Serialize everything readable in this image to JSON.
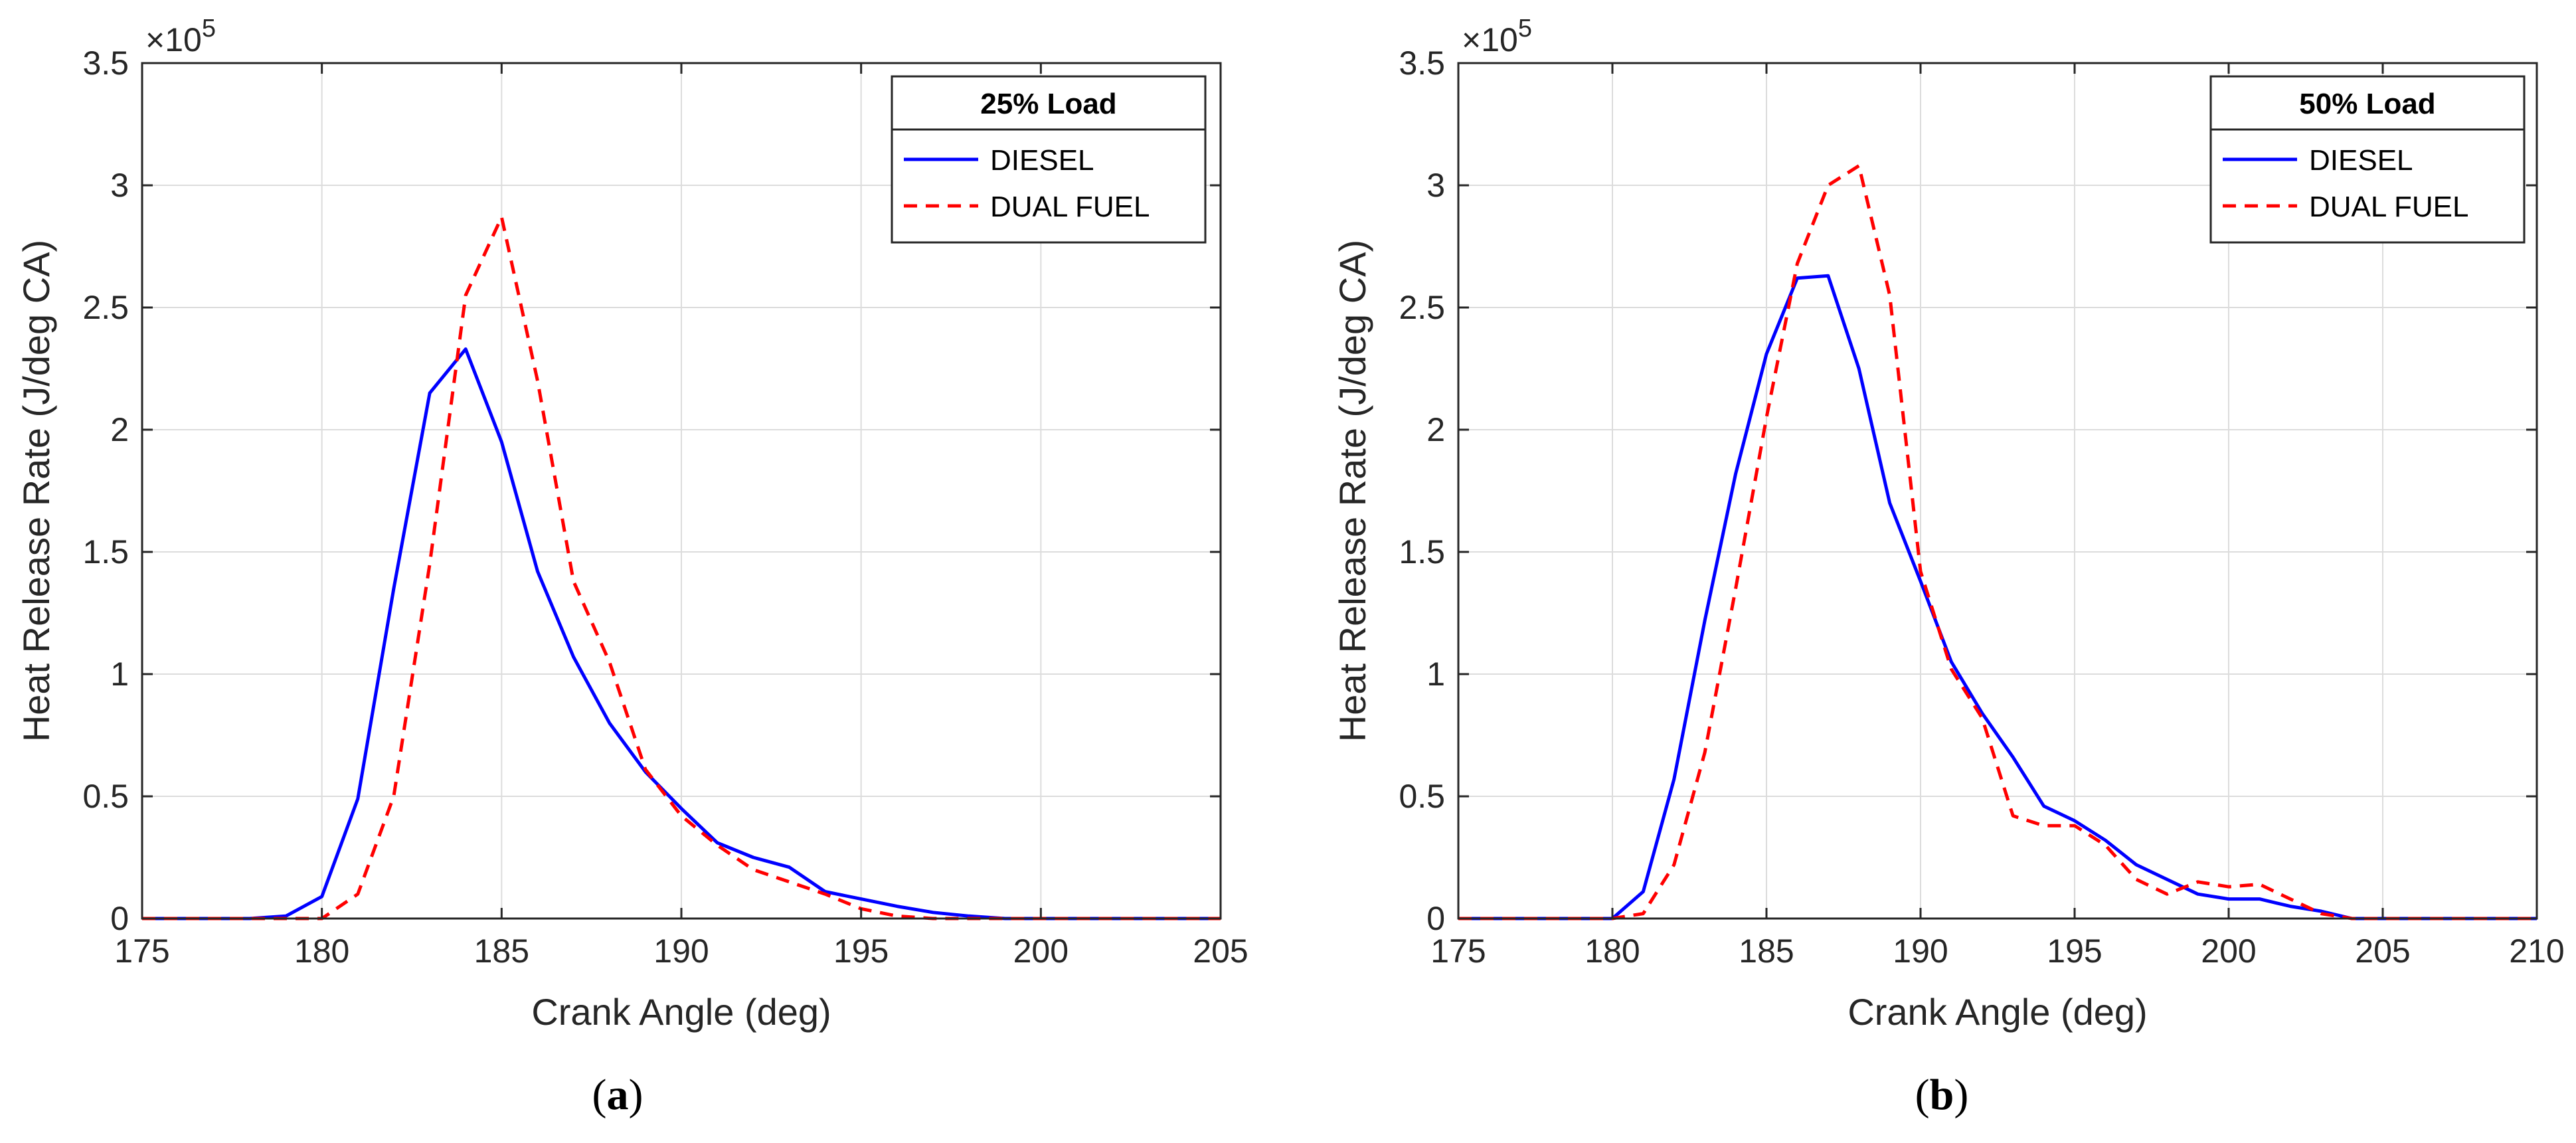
{
  "chart_data": [
    {
      "type": "line",
      "panel_label_prefix": "(",
      "panel_label_letter": "a",
      "panel_label_suffix": ")",
      "legend_title": "25% Load",
      "legend_position": "top-right",
      "grid": true,
      "xlabel": "Crank Angle (deg)",
      "ylabel": "Heat Release Rate (J/deg CA)",
      "y_multiplier_text": "×10",
      "y_multiplier_exp": "5",
      "xlim": [
        175,
        205
      ],
      "ylim": [
        0,
        3.5
      ],
      "xticks": [
        175,
        180,
        185,
        190,
        195,
        200,
        205
      ],
      "xtick_labels": [
        "175",
        "180",
        "185",
        "190",
        "195",
        "200",
        "205"
      ],
      "yticks": [
        0,
        0.5,
        1,
        1.5,
        2,
        2.5,
        3,
        3.5
      ],
      "ytick_labels": [
        "0",
        "0.5",
        "1",
        "1.5",
        "2",
        "2.5",
        "3",
        "3.5"
      ],
      "series": [
        {
          "name": "DIESEL",
          "color": "#0000ff",
          "style": "solid",
          "x": [
            175,
            176,
            177,
            178,
            179,
            180,
            181,
            182,
            183,
            184,
            185,
            186,
            187,
            188,
            189,
            190,
            191,
            192,
            193,
            194,
            195,
            196,
            197,
            198,
            199,
            200,
            201,
            202,
            203,
            204,
            205
          ],
          "y": [
            0,
            0,
            0,
            0,
            0.01,
            0.09,
            0.49,
            1.35,
            2.15,
            2.33,
            1.95,
            1.42,
            1.07,
            0.8,
            0.6,
            0.45,
            0.31,
            0.25,
            0.21,
            0.11,
            0.08,
            0.05,
            0.025,
            0.01,
            0,
            0,
            0,
            0,
            0,
            0,
            0
          ]
        },
        {
          "name": "DUAL FUEL",
          "color": "#ff0000",
          "style": "dashed",
          "x": [
            175,
            176,
            177,
            178,
            179,
            180,
            181,
            182,
            183,
            184,
            185,
            186,
            187,
            188,
            189,
            190,
            191,
            192,
            193,
            194,
            195,
            196,
            197,
            198,
            199,
            200,
            201,
            202,
            203,
            204,
            205
          ],
          "y": [
            0,
            0,
            0,
            0,
            0,
            0,
            0.1,
            0.5,
            1.45,
            2.55,
            2.87,
            2.2,
            1.38,
            1.05,
            0.61,
            0.42,
            0.3,
            0.2,
            0.15,
            0.1,
            0.04,
            0.01,
            0,
            0,
            0,
            0,
            0,
            0,
            0,
            0,
            0
          ]
        }
      ]
    },
    {
      "type": "line",
      "panel_label_prefix": "(",
      "panel_label_letter": "b",
      "panel_label_suffix": ")",
      "legend_title": "50% Load",
      "legend_position": "top-right",
      "grid": true,
      "xlabel": "Crank Angle (deg)",
      "ylabel": "Heat Release Rate (J/deg CA)",
      "y_multiplier_text": "×10",
      "y_multiplier_exp": "5",
      "xlim": [
        175,
        210
      ],
      "ylim": [
        0,
        3.5
      ],
      "xticks": [
        175,
        180,
        185,
        190,
        195,
        200,
        205,
        210
      ],
      "xtick_labels": [
        "175",
        "180",
        "185",
        "190",
        "195",
        "200",
        "205",
        "210"
      ],
      "yticks": [
        0,
        0.5,
        1,
        1.5,
        2,
        2.5,
        3,
        3.5
      ],
      "ytick_labels": [
        "0",
        "0.5",
        "1",
        "1.5",
        "2",
        "2.5",
        "3",
        "3.5"
      ],
      "series": [
        {
          "name": "DIESEL",
          "color": "#0000ff",
          "style": "solid",
          "x": [
            175,
            176,
            177,
            178,
            179,
            180,
            181,
            182,
            183,
            184,
            185,
            186,
            187,
            188,
            189,
            190,
            191,
            192,
            193,
            194,
            195,
            196,
            197,
            198,
            199,
            200,
            201,
            202,
            203,
            204,
            205,
            206,
            207,
            208,
            209,
            210
          ],
          "y": [
            0,
            0,
            0,
            0,
            0,
            0,
            0.11,
            0.57,
            1.22,
            1.82,
            2.31,
            2.62,
            2.63,
            2.25,
            1.7,
            1.38,
            1.05,
            0.84,
            0.66,
            0.46,
            0.4,
            0.32,
            0.22,
            0.16,
            0.1,
            0.08,
            0.08,
            0.05,
            0.03,
            0,
            0,
            0,
            0,
            0,
            0,
            0
          ]
        },
        {
          "name": "DUAL FUEL",
          "color": "#ff0000",
          "style": "dashed",
          "x": [
            175,
            176,
            177,
            178,
            179,
            180,
            181,
            182,
            183,
            184,
            185,
            186,
            187,
            188,
            189,
            190,
            191,
            192,
            193,
            194,
            195,
            196,
            197,
            198,
            199,
            200,
            201,
            202,
            203,
            204,
            205,
            206,
            207,
            208,
            209,
            210
          ],
          "y": [
            0,
            0,
            0,
            0,
            0,
            0,
            0.02,
            0.22,
            0.68,
            1.35,
            2.05,
            2.68,
            3.0,
            3.08,
            2.55,
            1.42,
            1.02,
            0.82,
            0.42,
            0.38,
            0.38,
            0.3,
            0.16,
            0.1,
            0.15,
            0.13,
            0.14,
            0.08,
            0.02,
            0,
            0,
            0,
            0,
            0,
            0,
            0
          ]
        }
      ]
    }
  ]
}
